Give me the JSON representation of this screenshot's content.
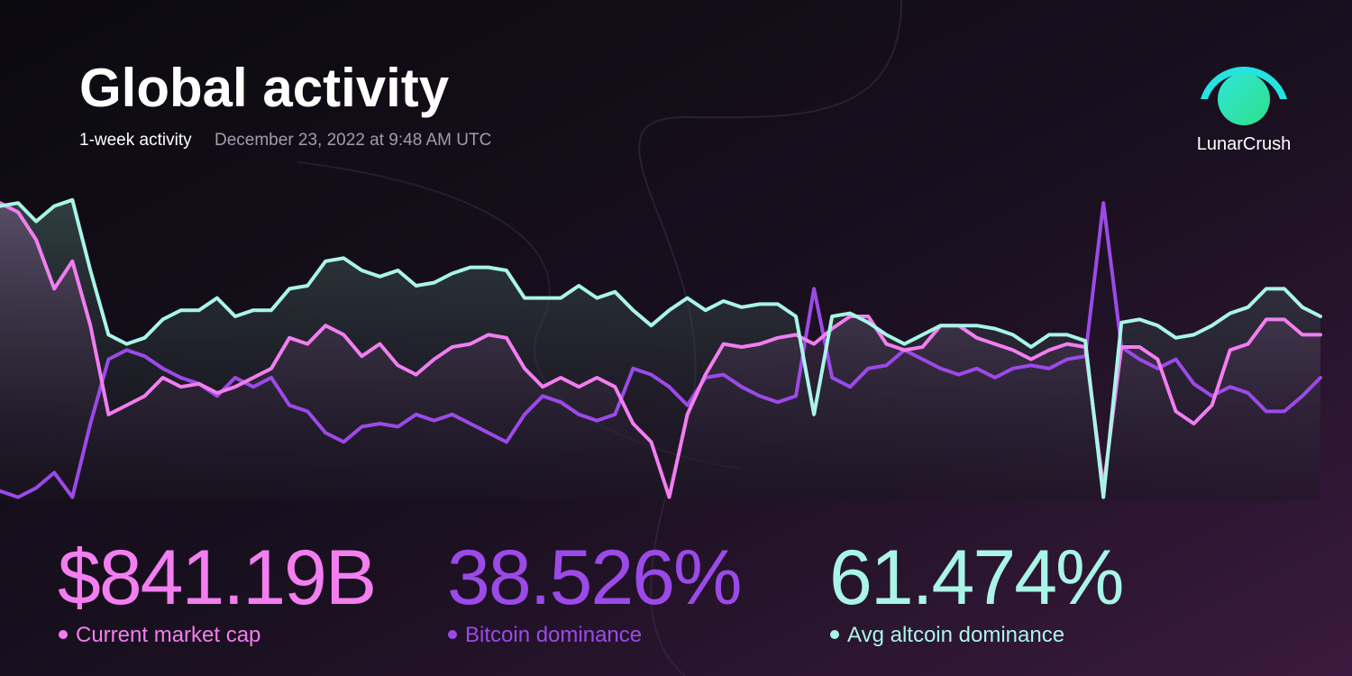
{
  "header": {
    "title": "Global activity",
    "subtitle": "1-week activity",
    "timestamp": "December 23, 2022 at 9:48 AM UTC",
    "brand": "LunarCrush"
  },
  "chart_data": {
    "type": "line",
    "ylim": [
      0,
      100
    ],
    "series": [
      {
        "name": "Current market cap",
        "color": "#f27ef0",
        "values": [
          97,
          94,
          85,
          69,
          78,
          57,
          28,
          31,
          34,
          40,
          37,
          38,
          35,
          37,
          40,
          43,
          53,
          51,
          57,
          54,
          47,
          51,
          44,
          41,
          46,
          50,
          51,
          54,
          53,
          43,
          37,
          40,
          37,
          40,
          37,
          25,
          19,
          1,
          28,
          41,
          51,
          50,
          51,
          53,
          54,
          51,
          56,
          60,
          60,
          51,
          49,
          50,
          57,
          57,
          53,
          51,
          49,
          46,
          49,
          51,
          50,
          4,
          50,
          50,
          46,
          29,
          25,
          31,
          49,
          51,
          59,
          59,
          54,
          54
        ]
      },
      {
        "name": "Bitcoin dominance",
        "color": "#9b4ae8",
        "values": [
          3,
          1,
          4,
          9,
          1,
          25,
          46,
          49,
          47,
          43,
          40,
          38,
          34,
          40,
          37,
          40,
          31,
          29,
          22,
          19,
          24,
          25,
          24,
          28,
          26,
          28,
          25,
          22,
          19,
          28,
          34,
          32,
          28,
          26,
          28,
          43,
          41,
          37,
          31,
          40,
          41,
          37,
          34,
          32,
          34,
          69,
          40,
          37,
          43,
          44,
          49,
          46,
          43,
          41,
          43,
          40,
          43,
          44,
          43,
          46,
          47,
          97,
          50,
          46,
          43,
          46,
          38,
          34,
          37,
          35,
          29,
          29,
          34,
          40
        ]
      },
      {
        "name": "Avg altcoin dominance",
        "color": "#a9f5e7",
        "values": [
          96,
          97,
          91,
          96,
          98,
          75,
          54,
          51,
          53,
          59,
          62,
          62,
          66,
          60,
          62,
          62,
          69,
          70,
          78,
          79,
          75,
          73,
          75,
          70,
          71,
          74,
          76,
          76,
          75,
          66,
          66,
          66,
          70,
          66,
          68,
          62,
          57,
          62,
          66,
          62,
          65,
          63,
          64,
          64,
          60,
          28,
          60,
          61,
          58,
          54,
          51,
          54,
          57,
          57,
          57,
          56,
          54,
          50,
          54,
          54,
          52,
          1,
          58,
          59,
          57,
          53,
          54,
          57,
          61,
          63,
          69,
          69,
          63,
          60
        ]
      }
    ]
  },
  "stats": [
    "$841.19B",
    "38.526%",
    "61.474%"
  ]
}
